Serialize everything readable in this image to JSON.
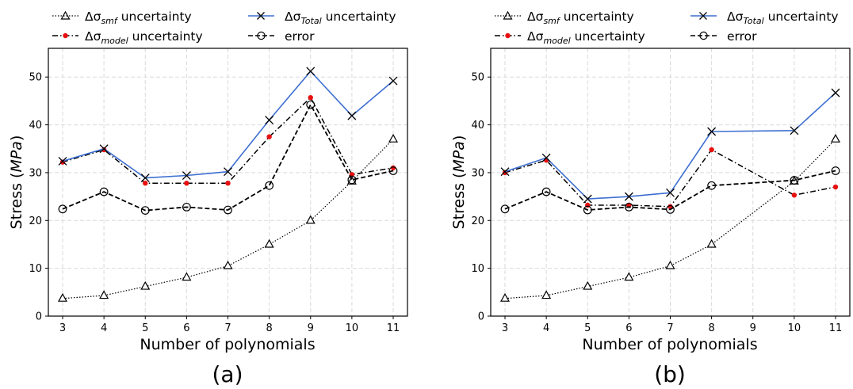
{
  "chart_data": [
    {
      "type": "line",
      "panel_label": "(a)",
      "xlabel": "Number of polynomials",
      "ylabel_main": "Stress (",
      "ylabel_unit": "MPa",
      "ylabel_close": ")",
      "x": [
        3,
        4,
        5,
        6,
        7,
        8,
        9,
        10,
        11
      ],
      "xticks": [
        "3",
        "4",
        "5",
        "6",
        "7",
        "8",
        "9",
        "10",
        "11"
      ],
      "ylim": [
        0,
        56
      ],
      "yticks": [
        "0",
        "10",
        "20",
        "30",
        "40",
        "50"
      ],
      "grid": true,
      "legend_placement": "top",
      "series": [
        {
          "name": "Δσ_smf uncertainty",
          "style": "dotted-triangle",
          "color": "#000000",
          "values": [
            3.7,
            4.3,
            6.2,
            8.1,
            10.5,
            15.0,
            20.0,
            28.2,
            37.0
          ]
        },
        {
          "name": "Δσ_model uncertainty",
          "style": "dashdot-dot",
          "color": "#000000",
          "marker_color": "#e8100f",
          "values": [
            32.2,
            34.8,
            27.8,
            27.8,
            27.8,
            37.5,
            45.7,
            29.6,
            31.0
          ]
        },
        {
          "name": "Δσ_Total uncertainty",
          "style": "solid-x",
          "color": "#3d6fd1",
          "values": [
            32.4,
            35.0,
            28.9,
            29.4,
            30.2,
            41.0,
            51.2,
            41.9,
            49.2
          ]
        },
        {
          "name": "error",
          "style": "dashed-circle",
          "color": "#000000",
          "values": [
            22.4,
            26.0,
            22.1,
            22.8,
            22.2,
            27.3,
            44.2,
            28.5,
            30.4
          ]
        }
      ]
    },
    {
      "type": "line",
      "panel_label": "(b)",
      "xlabel": "Number of polynomials",
      "ylabel_main": "Stress (",
      "ylabel_unit": "MPa",
      "ylabel_close": ")",
      "x": [
        3,
        4,
        5,
        6,
        7,
        8,
        9,
        10,
        11
      ],
      "xticks": [
        "3",
        "4",
        "5",
        "6",
        "7",
        "8",
        "9",
        "10",
        "11"
      ],
      "ylim": [
        0,
        56
      ],
      "yticks": [
        "0",
        "10",
        "20",
        "30",
        "40",
        "50"
      ],
      "grid": true,
      "legend_placement": "top",
      "series": [
        {
          "name": "Δσ_smf uncertainty",
          "style": "dotted-triangle",
          "color": "#000000",
          "points": [
            [
              3,
              3.7
            ],
            [
              4,
              4.3
            ],
            [
              5,
              6.2
            ],
            [
              6,
              8.1
            ],
            [
              7,
              10.5
            ],
            [
              8,
              15.0
            ],
            [
              10,
              28.2
            ],
            [
              11,
              37.0
            ]
          ]
        },
        {
          "name": "Δσ_model uncertainty",
          "style": "dashdot-dot",
          "color": "#000000",
          "marker_color": "#e8100f",
          "points": [
            [
              3,
              30.0
            ],
            [
              4,
              32.6
            ],
            [
              5,
              23.2
            ],
            [
              6,
              23.2
            ],
            [
              7,
              22.9
            ],
            [
              8,
              34.8
            ],
            [
              10,
              25.3
            ],
            [
              11,
              27.0
            ]
          ]
        },
        {
          "name": "Δσ_Total uncertainty",
          "style": "solid-x",
          "color": "#3d6fd1",
          "points": [
            [
              3,
              30.2
            ],
            [
              4,
              33.1
            ],
            [
              5,
              24.5
            ],
            [
              6,
              25.0
            ],
            [
              7,
              25.8
            ],
            [
              8,
              38.6
            ],
            [
              10,
              38.8
            ],
            [
              11,
              46.7
            ]
          ]
        },
        {
          "name": "error",
          "style": "dashed-circle",
          "color": "#000000",
          "points": [
            [
              3,
              22.4
            ],
            [
              4,
              26.0
            ],
            [
              5,
              22.2
            ],
            [
              6,
              22.8
            ],
            [
              7,
              22.3
            ],
            [
              8,
              27.3
            ],
            [
              10,
              28.4
            ],
            [
              11,
              30.4
            ]
          ]
        }
      ]
    }
  ],
  "legend": {
    "smf": {
      "prefix": "Δσ",
      "sub": "smf",
      "suffix": " uncertainty"
    },
    "model": {
      "prefix": "Δσ",
      "sub": "model",
      "suffix": " uncertainty"
    },
    "total": {
      "prefix": "Δσ",
      "sub": "Total",
      "suffix": " uncertainty"
    },
    "error": {
      "label": "error"
    }
  },
  "colors": {
    "total_line": "#3d6fd1",
    "model_marker": "#e8100f",
    "grid": "#d9d9d9"
  }
}
